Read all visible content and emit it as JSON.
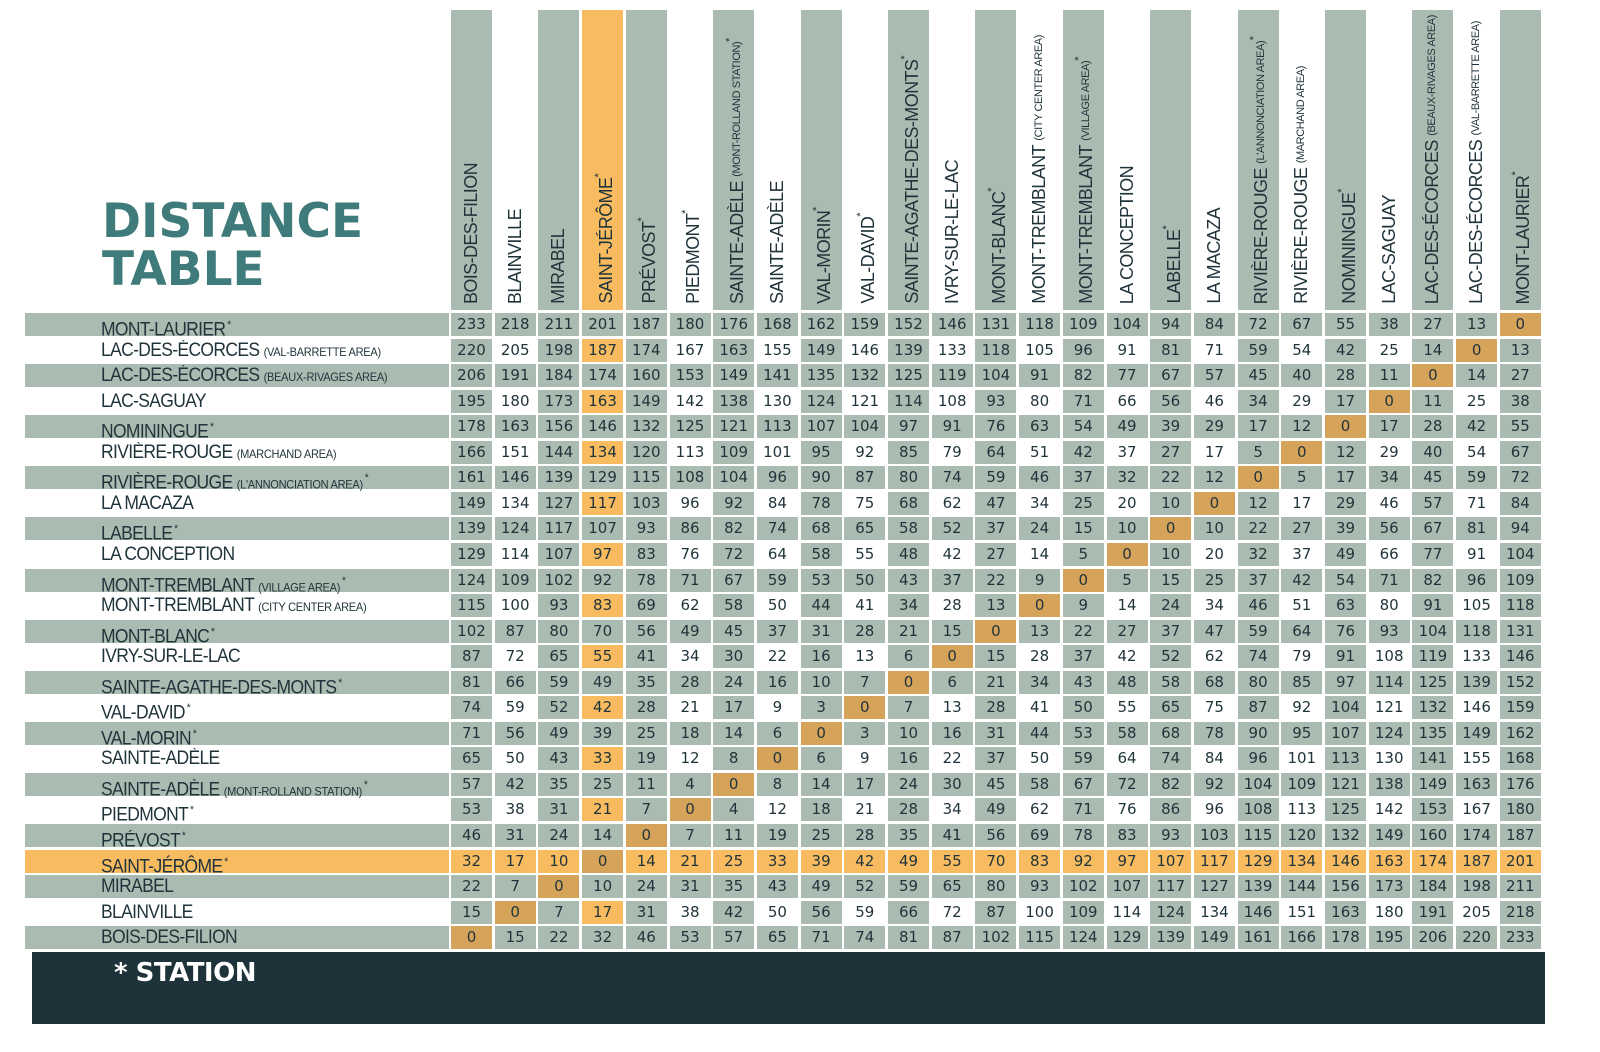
{
  "title": {
    "line1": "DISTANCE",
    "line2": "TABLE"
  },
  "legend": "* STATION",
  "colors": {
    "grey": "#aabcb1",
    "orange": "#f8bb5f",
    "zero": "#d6a35a",
    "title": "#3f7b7a",
    "footer": "#1e323a"
  },
  "highlight_location": "SAINT-JÉRÔME",
  "columns": [
    {
      "name": "BOIS-DES-FILION",
      "q": "",
      "star": ""
    },
    {
      "name": "BLAINVILLE",
      "q": "",
      "star": ""
    },
    {
      "name": "MIRABEL",
      "q": "",
      "star": ""
    },
    {
      "name": "SAINT-JÉRÔME",
      "q": "",
      "star": "*"
    },
    {
      "name": "PRÉVOST",
      "q": "",
      "star": "*"
    },
    {
      "name": "PIEDMONT",
      "q": "",
      "star": "*"
    },
    {
      "name": "SAINTE-ADÈLE",
      "q": "(MONT-ROLLAND STATION)",
      "star": "*"
    },
    {
      "name": "SAINTE-ADÈLE",
      "q": "",
      "star": ""
    },
    {
      "name": "VAL-MORIN",
      "q": "",
      "star": "*"
    },
    {
      "name": "VAL-DAVID",
      "q": "",
      "star": "*"
    },
    {
      "name": "SAINTE-AGATHE-DES-MONTS",
      "q": "",
      "star": "*"
    },
    {
      "name": "IVRY-SUR-LE-LAC",
      "q": "",
      "star": ""
    },
    {
      "name": "MONT-BLANC",
      "q": "",
      "star": "*"
    },
    {
      "name": "MONT-TREMBLANT",
      "q": "(CITY CENTER AREA)",
      "star": ""
    },
    {
      "name": "MONT-TREMBLANT",
      "q": "(VILLAGE AREA)",
      "star": "*"
    },
    {
      "name": "LA CONCEPTION",
      "q": "",
      "star": ""
    },
    {
      "name": "LABELLE",
      "q": "",
      "star": "*"
    },
    {
      "name": "LA MACAZA",
      "q": "",
      "star": ""
    },
    {
      "name": "RIVIÈRE-ROUGE",
      "q": "(L'ANNONCIATION AREA)",
      "star": "*"
    },
    {
      "name": "RIVIÈRE-ROUGE",
      "q": "(MARCHAND AREA)",
      "star": ""
    },
    {
      "name": "NOMININGUE",
      "q": "",
      "star": "*"
    },
    {
      "name": "LAC-SAGUAY",
      "q": "",
      "star": ""
    },
    {
      "name": "LAC-DES-ÉCORCES",
      "q": "(BEAUX-RIVAGES AREA)",
      "star": ""
    },
    {
      "name": "LAC-DES-ÉCORCES",
      "q": "(VAL-BARRETTE AREA)",
      "star": ""
    },
    {
      "name": "MONT-LAURIER",
      "q": "",
      "star": "*"
    }
  ],
  "rows": [
    {
      "name": "MONT-LAURIER",
      "q": "",
      "star": "*",
      "values": [
        "233",
        "218",
        "211",
        "201",
        "187",
        "180",
        "176",
        "168",
        "162",
        "159",
        "152",
        "146",
        "131",
        "118",
        "109",
        "104",
        "94",
        "84",
        "72",
        "67",
        "55",
        "38",
        "27",
        "13",
        "0"
      ]
    },
    {
      "name": "LAC-DES-ÉCORCES",
      "q": "(VAL-BARRETTE AREA)",
      "star": "",
      "values": [
        "220",
        "205",
        "198",
        "187",
        "174",
        "167",
        "163",
        "155",
        "149",
        "146",
        "139",
        "133",
        "118",
        "105",
        "96",
        "91",
        "81",
        "71",
        "59",
        "54",
        "42",
        "25",
        "14",
        "0",
        "13"
      ]
    },
    {
      "name": "LAC-DES-ÉCORCES",
      "q": "(BEAUX-RIVAGES AREA)",
      "star": "",
      "values": [
        "206",
        "191",
        "184",
        "174",
        "160",
        "153",
        "149",
        "141",
        "135",
        "132",
        "125",
        "119",
        "104",
        "91",
        "82",
        "77",
        "67",
        "57",
        "45",
        "40",
        "28",
        "11",
        "0",
        "14",
        "27"
      ]
    },
    {
      "name": "LAC-SAGUAY",
      "q": "",
      "star": "",
      "values": [
        "195",
        "180",
        "173",
        "163",
        "149",
        "142",
        "138",
        "130",
        "124",
        "121",
        "114",
        "108",
        "93",
        "80",
        "71",
        "66",
        "56",
        "46",
        "34",
        "29",
        "17",
        "0",
        "11",
        "25",
        "38"
      ]
    },
    {
      "name": "NOMININGUE",
      "q": "",
      "star": "*",
      "values": [
        "178",
        "163",
        "156",
        "146",
        "132",
        "125",
        "121",
        "113",
        "107",
        "104",
        "97",
        "91",
        "76",
        "63",
        "54",
        "49",
        "39",
        "29",
        "17",
        "12",
        "0",
        "17",
        "28",
        "42",
        "55"
      ]
    },
    {
      "name": "RIVIÈRE-ROUGE",
      "q": "(MARCHAND AREA)",
      "star": "",
      "values": [
        "166",
        "151",
        "144",
        "134",
        "120",
        "113",
        "109",
        "101",
        "95",
        "92",
        "85",
        "79",
        "64",
        "51",
        "42",
        "37",
        "27",
        "17",
        "5",
        "0",
        "12",
        "29",
        "40",
        "54",
        "67"
      ]
    },
    {
      "name": "RIVIÈRE-ROUGE",
      "q": "(L'ANNONCIATION AREA)",
      "star": "*",
      "values": [
        "161",
        "146",
        "139",
        "129",
        "115",
        "108",
        "104",
        "96",
        "90",
        "87",
        "80",
        "74",
        "59",
        "46",
        "37",
        "32",
        "22",
        "12",
        "0",
        "5",
        "17",
        "34",
        "45",
        "59",
        "72"
      ]
    },
    {
      "name": "LA MACAZA",
      "q": "",
      "star": "",
      "values": [
        "149",
        "134",
        "127",
        "117",
        "103",
        "96",
        "92",
        "84",
        "78",
        "75",
        "68",
        "62",
        "47",
        "34",
        "25",
        "20",
        "10",
        "0",
        "12",
        "17",
        "29",
        "46",
        "57",
        "71",
        "84"
      ]
    },
    {
      "name": "LABELLE",
      "q": "",
      "star": "*",
      "values": [
        "139",
        "124",
        "117",
        "107",
        "93",
        "86",
        "82",
        "74",
        "68",
        "65",
        "58",
        "52",
        "37",
        "24",
        "15",
        "10",
        "0",
        "10",
        "22",
        "27",
        "39",
        "56",
        "67",
        "81",
        "94"
      ]
    },
    {
      "name": "LA CONCEPTION",
      "q": "",
      "star": "",
      "values": [
        "129",
        "114",
        "107",
        "97",
        "83",
        "76",
        "72",
        "64",
        "58",
        "55",
        "48",
        "42",
        "27",
        "14",
        "5",
        "0",
        "10",
        "20",
        "32",
        "37",
        "49",
        "66",
        "77",
        "91",
        "104"
      ]
    },
    {
      "name": "MONT-TREMBLANT",
      "q": "(VILLAGE AREA)",
      "star": "*",
      "values": [
        "124",
        "109",
        "102",
        "92",
        "78",
        "71",
        "67",
        "59",
        "53",
        "50",
        "43",
        "37",
        "22",
        "9",
        "0",
        "5",
        "15",
        "25",
        "37",
        "42",
        "54",
        "71",
        "82",
        "96",
        "109"
      ]
    },
    {
      "name": "MONT-TREMBLANT",
      "q": "(CITY CENTER AREA)",
      "star": "",
      "values": [
        "115",
        "100",
        "93",
        "83",
        "69",
        "62",
        "58",
        "50",
        "44",
        "41",
        "34",
        "28",
        "13",
        "0",
        "9",
        "14",
        "24",
        "34",
        "46",
        "51",
        "63",
        "80",
        "91",
        "105",
        "118"
      ]
    },
    {
      "name": "MONT-BLANC",
      "q": "",
      "star": "*",
      "values": [
        "102",
        "87",
        "80",
        "70",
        "56",
        "49",
        "45",
        "37",
        "31",
        "28",
        "21",
        "15",
        "0",
        "13",
        "22",
        "27",
        "37",
        "47",
        "59",
        "64",
        "76",
        "93",
        "104",
        "118",
        "131"
      ]
    },
    {
      "name": "IVRY-SUR-LE-LAC",
      "q": "",
      "star": "",
      "values": [
        "87",
        "72",
        "65",
        "55",
        "41",
        "34",
        "30",
        "22",
        "16",
        "13",
        "6",
        "0",
        "15",
        "28",
        "37",
        "42",
        "52",
        "62",
        "74",
        "79",
        "91",
        "108",
        "119",
        "133",
        "146"
      ]
    },
    {
      "name": "SAINTE-AGATHE-DES-MONTS",
      "q": "",
      "star": "*",
      "values": [
        "81",
        "66",
        "59",
        "49",
        "35",
        "28",
        "24",
        "16",
        "10",
        "7",
        "0",
        "6",
        "21",
        "34",
        "43",
        "48",
        "58",
        "68",
        "80",
        "85",
        "97",
        "114",
        "125",
        "139",
        "152"
      ]
    },
    {
      "name": "VAL-DAVID",
      "q": "",
      "star": "*",
      "values": [
        "74",
        "59",
        "52",
        "42",
        "28",
        "21",
        "17",
        "9",
        "3",
        "0",
        "7",
        "13",
        "28",
        "41",
        "50",
        "55",
        "65",
        "75",
        "87",
        "92",
        "104",
        "121",
        "132",
        "146",
        "159"
      ]
    },
    {
      "name": "VAL-MORIN",
      "q": "",
      "star": "*",
      "values": [
        "71",
        "56",
        "49",
        "39",
        "25",
        "18",
        "14",
        "6",
        "0",
        "3",
        "10",
        "16",
        "31",
        "44",
        "53",
        "58",
        "68",
        "78",
        "90",
        "95",
        "107",
        "124",
        "135",
        "149",
        "162"
      ]
    },
    {
      "name": "SAINTE-ADÈLE",
      "q": "",
      "star": "",
      "values": [
        "65",
        "50",
        "43",
        "33",
        "19",
        "12",
        "8",
        "0",
        "6",
        "9",
        "16",
        "22",
        "37",
        "50",
        "59",
        "64",
        "74",
        "84",
        "96",
        "101",
        "113",
        "130",
        "141",
        "155",
        "168"
      ]
    },
    {
      "name": "SAINTE-ADÈLE",
      "q": "(MONT-ROLLAND STATION)",
      "star": "*",
      "values": [
        "57",
        "42",
        "35",
        "25",
        "11",
        "4",
        "0",
        "8",
        "14",
        "17",
        "24",
        "30",
        "45",
        "58",
        "67",
        "72",
        "82",
        "92",
        "104",
        "109",
        "121",
        "138",
        "149",
        "163",
        "176"
      ]
    },
    {
      "name": "PIEDMONT",
      "q": "",
      "star": "*",
      "values": [
        "53",
        "38",
        "31",
        "21",
        "7",
        "0",
        "4",
        "12",
        "18",
        "21",
        "28",
        "34",
        "49",
        "62",
        "71",
        "76",
        "86",
        "96",
        "108",
        "113",
        "125",
        "142",
        "153",
        "167",
        "180"
      ]
    },
    {
      "name": "PRÉVOST",
      "q": "",
      "star": "*",
      "values": [
        "46",
        "31",
        "24",
        "14",
        "0",
        "7",
        "11",
        "19",
        "25",
        "28",
        "35",
        "41",
        "56",
        "69",
        "78",
        "83",
        "93",
        "103",
        "115",
        "120",
        "132",
        "149",
        "160",
        "174",
        "187"
      ]
    },
    {
      "name": "SAINT-JÉRÔME",
      "q": "",
      "star": "*",
      "values": [
        "32",
        "17",
        "10",
        "0",
        "14",
        "21",
        "25",
        "33",
        "39",
        "42",
        "49",
        "55",
        "70",
        "83",
        "92",
        "97",
        "107",
        "117",
        "129",
        "134",
        "146",
        "163",
        "174",
        "187",
        "201"
      ]
    },
    {
      "name": "MIRABEL",
      "q": "",
      "star": "",
      "values": [
        "22",
        "7",
        "0",
        "10",
        "24",
        "31",
        "35",
        "43",
        "49",
        "52",
        "59",
        "65",
        "80",
        "93",
        "102",
        "107",
        "117",
        "127",
        "139",
        "144",
        "156",
        "173",
        "184",
        "198",
        "211"
      ]
    },
    {
      "name": "BLAINVILLE",
      "q": "",
      "star": "",
      "values": [
        "15",
        "0",
        "7",
        "17",
        "31",
        "38",
        "42",
        "50",
        "56",
        "59",
        "66",
        "72",
        "87",
        "100",
        "109",
        "114",
        "124",
        "134",
        "146",
        "151",
        "163",
        "180",
        "191",
        "205",
        "218"
      ]
    },
    {
      "name": "BOIS-DES-FILION",
      "q": "",
      "star": "",
      "values": [
        "0",
        "15",
        "22",
        "32",
        "46",
        "53",
        "57",
        "65",
        "71",
        "74",
        "81",
        "87",
        "102",
        "115",
        "124",
        "129",
        "139",
        "149",
        "161",
        "166",
        "178",
        "195",
        "206",
        "220",
        "233"
      ]
    }
  ]
}
